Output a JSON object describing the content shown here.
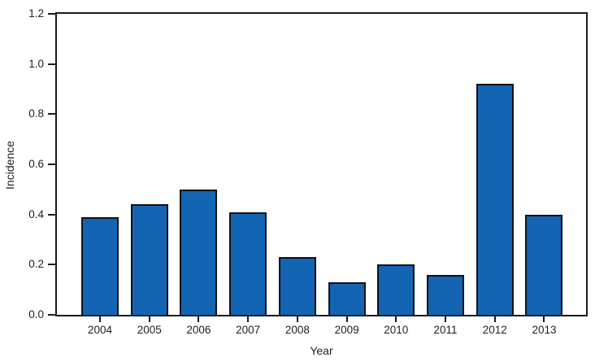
{
  "chart_data": {
    "type": "bar",
    "title": "",
    "xlabel": "Year",
    "ylabel": "Incidence",
    "categories": [
      "2004",
      "2005",
      "2006",
      "2007",
      "2008",
      "2009",
      "2010",
      "2011",
      "2012",
      "2013"
    ],
    "values": [
      0.39,
      0.44,
      0.5,
      0.41,
      0.23,
      0.13,
      0.2,
      0.16,
      0.92,
      0.4
    ],
    "ylim": [
      0,
      1.2
    ],
    "yticks": [
      0.0,
      0.2,
      0.4,
      0.6,
      0.8,
      1.0,
      1.2
    ],
    "ytick_labels": [
      "0.0",
      "0.2",
      "0.4",
      "0.6",
      "0.8",
      "1.0",
      "1.2"
    ],
    "grid": false,
    "legend": null,
    "colors": {
      "bar_fill": "#1464b4",
      "bar_edge": "#111111",
      "axis": "#1a1a1a",
      "text": "#1f1f1f",
      "background": "#ffffff"
    }
  }
}
